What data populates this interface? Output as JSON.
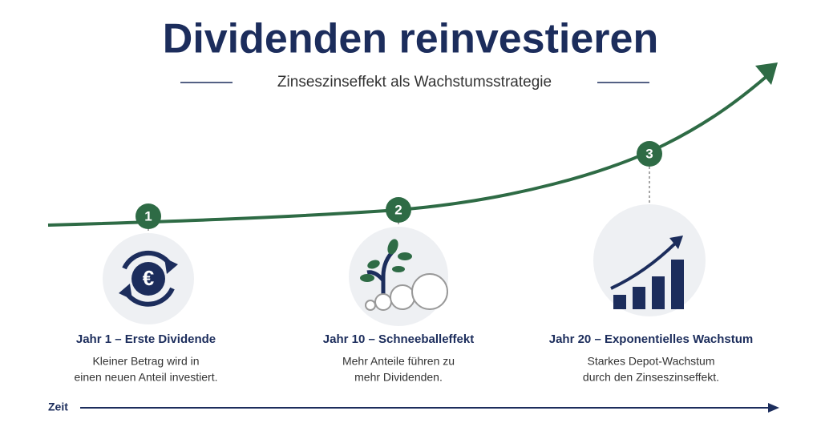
{
  "header": {
    "title": "Dividenden reinvestieren",
    "subtitle": "Zinseszinseffekt als Wachstumsstrategie"
  },
  "steps": [
    {
      "number": "1",
      "title": "Jahr 1 – Erste Dividende",
      "lines": [
        "Kleiner Betrag wird in",
        "einen neuen Anteil investiert."
      ]
    },
    {
      "number": "2",
      "title": "Jahr 10 – Schneeballeffekt",
      "lines": [
        "Mehr Anteile führen zu",
        "mehr Dividenden."
      ]
    },
    {
      "number": "3",
      "title": "Jahr 20 – Exponentielles Wachstum",
      "lines": [
        "Starkes Depot-Wachstum",
        "durch den Zinseszinseffekt."
      ]
    }
  ],
  "timeline": {
    "label": "Zeit"
  }
}
